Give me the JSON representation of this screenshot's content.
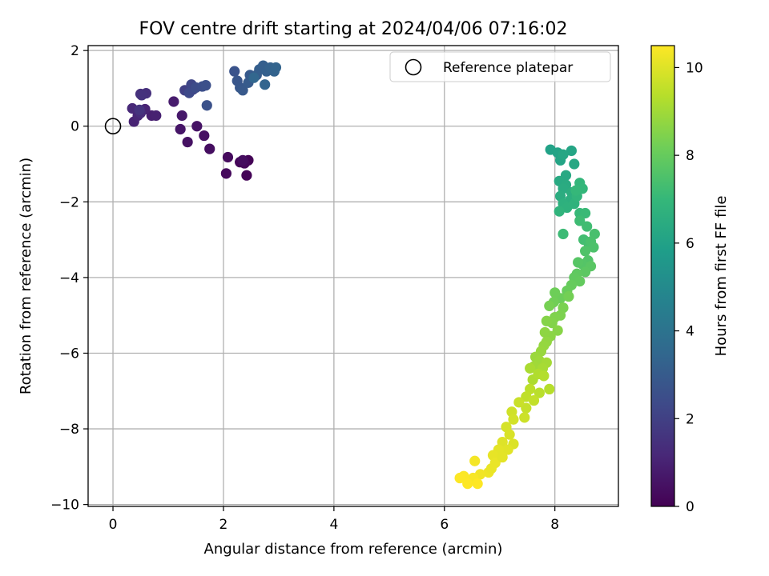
{
  "chart_data": {
    "type": "scatter",
    "title": "FOV centre drift starting at 2024/04/06 07:16:02",
    "xlabel": "Angular distance from reference (arcmin)",
    "ylabel": "Rotation from reference (arcmin)",
    "xlim": [
      -0.45,
      9.15
    ],
    "ylim": [
      -10.05,
      2.13
    ],
    "xticks": [
      0,
      2,
      4,
      6,
      8
    ],
    "yticks": [
      2,
      0,
      -2,
      -4,
      -6,
      -8,
      -10
    ],
    "xtick_labels": [
      "0",
      "2",
      "4",
      "6",
      "8"
    ],
    "ytick_labels": [
      "2",
      "0",
      "−2",
      "−4",
      "−6",
      "−8",
      "−10"
    ],
    "grid": true,
    "legend": {
      "placement": "top-right",
      "entries": [
        "Reference platepar"
      ]
    },
    "reference_point": {
      "x": 0,
      "y": 0,
      "label": "Reference platepar"
    },
    "colorbar": {
      "label": "Hours from first FF file",
      "colormap": "viridis",
      "range": [
        0,
        10.5
      ],
      "ticks": [
        0,
        2,
        4,
        6,
        8,
        10
      ],
      "tick_labels": [
        "0",
        "2",
        "4",
        "6",
        "8",
        "10"
      ]
    },
    "points": [
      [
        2.45,
        -0.9,
        0.05
      ],
      [
        2.42,
        -1.3,
        0.1
      ],
      [
        2.3,
        -0.95,
        0.15
      ],
      [
        2.38,
        -0.98,
        0.2
      ],
      [
        2.05,
        -1.25,
        0.25
      ],
      [
        2.08,
        -0.82,
        0.3
      ],
      [
        2.35,
        -0.9,
        0.35
      ],
      [
        1.75,
        -0.6,
        0.4
      ],
      [
        1.65,
        -0.25,
        0.45
      ],
      [
        1.35,
        -0.42,
        0.5
      ],
      [
        1.52,
        0,
        0.55
      ],
      [
        1.22,
        -0.08,
        0.6
      ],
      [
        1.25,
        0.28,
        0.7
      ],
      [
        1.1,
        0.65,
        0.8
      ],
      [
        0.7,
        0.28,
        0.9
      ],
      [
        0.78,
        0.28,
        0.95
      ],
      [
        0.38,
        0.12,
        1.0
      ],
      [
        0.58,
        0.45,
        1.05
      ],
      [
        0.45,
        0.28,
        1.1
      ],
      [
        0.35,
        0.47,
        1.2
      ],
      [
        0.5,
        0.35,
        1.3
      ],
      [
        0.5,
        0.85,
        1.4
      ],
      [
        0.6,
        0.87,
        1.45
      ],
      [
        0.52,
        0.82,
        1.5
      ],
      [
        0.48,
        0.43,
        1.55
      ],
      [
        1.3,
        0.95,
        2.0
      ],
      [
        1.45,
        0.97,
        2.1
      ],
      [
        1.42,
        1.1,
        2.2
      ],
      [
        1.38,
        0.88,
        2.3
      ],
      [
        1.5,
        1.02,
        2.4
      ],
      [
        1.62,
        1.05,
        2.5
      ],
      [
        1.68,
        1.08,
        2.55
      ],
      [
        1.7,
        0.55,
        2.6
      ],
      [
        2.2,
        1.45,
        2.7
      ],
      [
        2.25,
        1.2,
        2.8
      ],
      [
        2.3,
        1.02,
        2.85
      ],
      [
        2.35,
        0.95,
        2.9
      ],
      [
        2.48,
        1.35,
        2.95
      ],
      [
        2.45,
        1.15,
        3.0
      ],
      [
        2.6,
        1.35,
        3.05
      ],
      [
        2.65,
        1.5,
        3.1
      ],
      [
        2.72,
        1.6,
        3.15
      ],
      [
        2.78,
        1.45,
        3.2
      ],
      [
        2.85,
        1.55,
        3.25
      ],
      [
        2.92,
        1.45,
        3.3
      ],
      [
        2.95,
        1.55,
        3.35
      ],
      [
        2.75,
        1.1,
        3.4
      ],
      [
        2.55,
        1.28,
        3.45
      ],
      [
        7.92,
        -0.62,
        6.0
      ],
      [
        8.05,
        -0.7,
        6.05
      ],
      [
        8.1,
        -0.9,
        6.1
      ],
      [
        8.3,
        -0.65,
        6.15
      ],
      [
        8.15,
        -0.75,
        6.2
      ],
      [
        8.35,
        -1.0,
        6.25
      ],
      [
        8.2,
        -1.3,
        6.3
      ],
      [
        8.08,
        -1.45,
        6.35
      ],
      [
        8.2,
        -1.55,
        6.4
      ],
      [
        8.15,
        -1.65,
        6.45
      ],
      [
        8.1,
        -1.85,
        6.5
      ],
      [
        8.3,
        -1.75,
        6.55
      ],
      [
        8.28,
        -1.95,
        6.6
      ],
      [
        8.15,
        -2.05,
        6.65
      ],
      [
        8.22,
        -2.15,
        6.7
      ],
      [
        8.35,
        -2.05,
        6.75
      ],
      [
        8.08,
        -2.25,
        6.8
      ],
      [
        8.4,
        -1.85,
        6.85
      ],
      [
        8.45,
        -1.5,
        6.9
      ],
      [
        8.5,
        -1.65,
        6.95
      ],
      [
        8.38,
        -1.7,
        7.0
      ],
      [
        8.45,
        -2.3,
        7.05
      ],
      [
        8.55,
        -2.3,
        7.1
      ],
      [
        8.15,
        -2.85,
        7.15
      ],
      [
        8.45,
        -2.5,
        7.2
      ],
      [
        8.58,
        -2.65,
        7.25
      ],
      [
        8.52,
        -3.0,
        7.3
      ],
      [
        8.62,
        -3.15,
        7.35
      ],
      [
        8.72,
        -2.85,
        7.4
      ],
      [
        8.65,
        -3.05,
        7.45
      ],
      [
        8.7,
        -3.2,
        7.5
      ],
      [
        8.55,
        -3.3,
        7.55
      ],
      [
        8.6,
        -3.55,
        7.6
      ],
      [
        8.5,
        -3.65,
        7.65
      ],
      [
        8.42,
        -3.6,
        7.7
      ],
      [
        8.65,
        -3.7,
        7.75
      ],
      [
        8.55,
        -3.85,
        7.8
      ],
      [
        8.4,
        -3.9,
        7.85
      ],
      [
        8.35,
        -4.0,
        7.9
      ],
      [
        8.45,
        -4.1,
        7.95
      ],
      [
        8.3,
        -4.2,
        8.0
      ],
      [
        8.22,
        -4.35,
        8.05
      ],
      [
        8.1,
        -4.55,
        8.1
      ],
      [
        8.0,
        -4.4,
        8.15
      ],
      [
        7.98,
        -4.65,
        8.2
      ],
      [
        8.25,
        -4.5,
        8.25
      ],
      [
        7.9,
        -4.75,
        8.3
      ],
      [
        8.15,
        -4.8,
        8.35
      ],
      [
        8.1,
        -5.0,
        8.4
      ],
      [
        8.0,
        -5.05,
        8.45
      ],
      [
        7.95,
        -5.2,
        8.5
      ],
      [
        7.85,
        -5.15,
        8.55
      ],
      [
        8.05,
        -5.4,
        8.6
      ],
      [
        7.92,
        -5.55,
        8.65
      ],
      [
        7.82,
        -5.45,
        8.7
      ],
      [
        7.85,
        -5.7,
        8.75
      ],
      [
        7.8,
        -5.8,
        8.8
      ],
      [
        7.75,
        -5.95,
        8.85
      ],
      [
        7.65,
        -6.1,
        8.9
      ],
      [
        7.72,
        -6.2,
        8.95
      ],
      [
        7.62,
        -6.35,
        9.0
      ],
      [
        7.85,
        -6.25,
        9.05
      ],
      [
        7.78,
        -6.4,
        9.1
      ],
      [
        7.55,
        -6.4,
        9.15
      ],
      [
        7.6,
        -6.7,
        9.2
      ],
      [
        7.7,
        -6.55,
        9.25
      ],
      [
        7.8,
        -6.6,
        9.3
      ],
      [
        7.9,
        -6.95,
        9.35
      ],
      [
        7.72,
        -7.05,
        9.4
      ],
      [
        7.55,
        -6.95,
        9.45
      ],
      [
        7.48,
        -7.15,
        9.5
      ],
      [
        7.62,
        -7.25,
        9.55
      ],
      [
        7.48,
        -7.45,
        9.6
      ],
      [
        7.35,
        -7.3,
        9.65
      ],
      [
        7.45,
        -7.7,
        9.7
      ],
      [
        7.22,
        -7.55,
        9.75
      ],
      [
        7.25,
        -7.75,
        9.8
      ],
      [
        7.12,
        -7.95,
        9.85
      ],
      [
        7.18,
        -8.15,
        9.9
      ],
      [
        7.25,
        -8.4,
        9.95
      ],
      [
        7.05,
        -8.35,
        10.0
      ],
      [
        7.15,
        -8.55,
        10.05
      ],
      [
        6.98,
        -8.55,
        10.1
      ],
      [
        6.88,
        -8.7,
        10.15
      ],
      [
        6.92,
        -8.9,
        10.2
      ],
      [
        6.8,
        -9.15,
        10.25
      ],
      [
        6.65,
        -9.2,
        10.3
      ],
      [
        6.55,
        -8.85,
        10.35
      ],
      [
        6.52,
        -9.3,
        10.4
      ],
      [
        6.35,
        -9.25,
        10.45
      ],
      [
        6.28,
        -9.3,
        10.48
      ],
      [
        6.6,
        -9.45,
        10.5
      ],
      [
        6.42,
        -9.45,
        10.5
      ],
      [
        6.85,
        -9.05,
        10.2
      ],
      [
        7.05,
        -8.75,
        10.1
      ]
    ]
  }
}
